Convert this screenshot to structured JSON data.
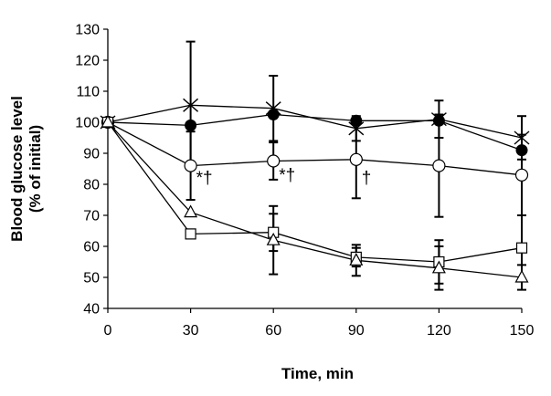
{
  "chart_data": {
    "type": "line",
    "title": "",
    "xlabel": "Time, min",
    "ylabel_lines": [
      "Blood glucose level",
      "(% of initial)"
    ],
    "x": [
      0,
      30,
      60,
      90,
      120,
      150
    ],
    "x_ticks": [
      "0",
      "30",
      "60",
      "90",
      "120",
      "150"
    ],
    "y_ticks": [
      "40",
      "50",
      "60",
      "70",
      "80",
      "90",
      "100",
      "110",
      "120",
      "130"
    ],
    "xlim": [
      0,
      150
    ],
    "ylim": [
      40,
      130
    ],
    "grid": false,
    "legend": "none",
    "series": [
      {
        "marker": "x",
        "values": [
          100,
          105.5,
          104.5,
          98,
          101,
          95
        ],
        "err": [
          0,
          20.5,
          10.5,
          4,
          6,
          7
        ]
      },
      {
        "marker": "filled-circle",
        "values": [
          100,
          99,
          102.5,
          100.5,
          100.5,
          91
        ],
        "err": [
          0,
          0,
          0,
          0,
          0,
          0
        ]
      },
      {
        "marker": "open-circle",
        "values": [
          100,
          86,
          87.5,
          88,
          86,
          83
        ],
        "err": [
          0,
          11,
          6,
          12.5,
          16.5,
          13
        ]
      },
      {
        "marker": "open-square",
        "values": [
          100,
          64,
          64.5,
          56.5,
          55,
          59.5
        ],
        "err": [
          0,
          0,
          6,
          3,
          7,
          10.5
        ]
      },
      {
        "marker": "open-triangle",
        "values": [
          100,
          71,
          62,
          55.5,
          53,
          50
        ],
        "err": [
          0,
          0,
          11,
          5,
          7,
          4
        ]
      }
    ],
    "annotations": [
      {
        "text": "*†",
        "x": 30,
        "y": 82
      },
      {
        "text": "*†",
        "x": 60,
        "y": 83
      },
      {
        "text": "†",
        "x": 90,
        "y": 82
      }
    ]
  }
}
